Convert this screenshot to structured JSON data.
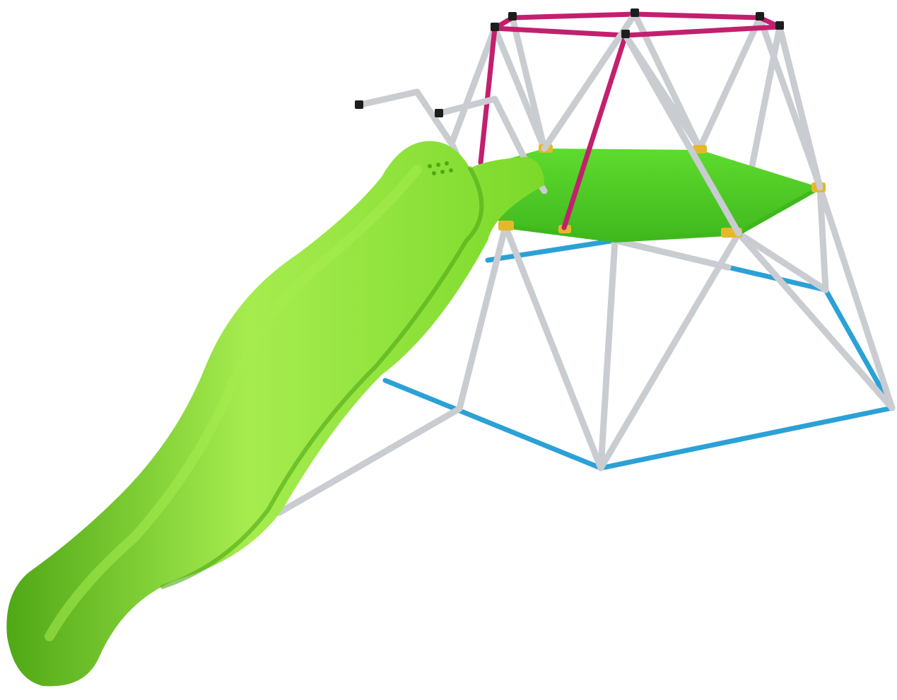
{
  "image": {
    "subject": "dome-climber-with-slide",
    "background_color": "#ffffff"
  },
  "colors": {
    "frame_silver": "#c9ccd1",
    "frame_silver_dark": "#9ea3aa",
    "top_ring_magenta": "#c2206e",
    "base_ring_blue": "#2ba1d6",
    "platform_green": "#5edb2e",
    "platform_green_dark": "#3fb81e",
    "slide_green": "#7bd92a",
    "slide_green_light": "#a6ec4f",
    "slide_green_dark": "#4fa816",
    "connector_yellow": "#e5b82a",
    "end_cap_black": "#1d1d1d"
  },
  "components": [
    {
      "name": "slide",
      "icon": "slide-icon"
    },
    {
      "name": "grab-handles",
      "icon": "handle-icon"
    },
    {
      "name": "platform",
      "icon": "platform-icon"
    },
    {
      "name": "top-ring",
      "icon": "ring-icon"
    },
    {
      "name": "base-ring",
      "icon": "ring-icon"
    },
    {
      "name": "dome-frame",
      "icon": "dome-icon"
    }
  ]
}
